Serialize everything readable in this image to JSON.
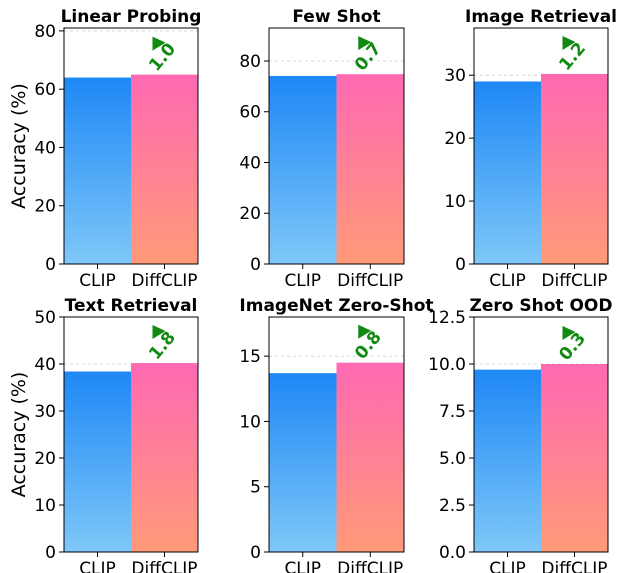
{
  "chart_data": [
    {
      "type": "bar",
      "title": "Linear Probing",
      "ylabel": "Accuracy (%)",
      "categories": [
        "CLIP",
        "DiffCLIP"
      ],
      "values": [
        64.0,
        65.0
      ],
      "ylim": [
        0,
        81
      ],
      "yticks": [
        0,
        20,
        40,
        60,
        80
      ],
      "ytick_labels": [
        "0",
        "20",
        "40",
        "60",
        "80"
      ],
      "delta": "1.0"
    },
    {
      "type": "bar",
      "title": "Few Shot",
      "ylabel": "",
      "categories": [
        "CLIP",
        "DiffCLIP"
      ],
      "values": [
        74.1,
        74.8
      ],
      "ylim": [
        0,
        93
      ],
      "yticks": [
        0,
        20,
        40,
        60,
        80
      ],
      "ytick_labels": [
        "0",
        "20",
        "40",
        "60",
        "80"
      ],
      "delta": "0.7"
    },
    {
      "type": "bar",
      "title": "Image Retrieval",
      "ylabel": "",
      "categories": [
        "CLIP",
        "DiffCLIP"
      ],
      "values": [
        29.0,
        30.2
      ],
      "ylim": [
        0,
        37.5
      ],
      "yticks": [
        0,
        10,
        20,
        30
      ],
      "ytick_labels": [
        "0",
        "10",
        "20",
        "30"
      ],
      "delta": "1.2"
    },
    {
      "type": "bar",
      "title": "Text Retrieval",
      "ylabel": "Accuracy (%)",
      "categories": [
        "CLIP",
        "DiffCLIP"
      ],
      "values": [
        38.4,
        40.2
      ],
      "ylim": [
        0,
        50
      ],
      "yticks": [
        0,
        10,
        20,
        30,
        40,
        50
      ],
      "ytick_labels": [
        "0",
        "10",
        "20",
        "30",
        "40",
        "50"
      ],
      "delta": "1.8"
    },
    {
      "type": "bar",
      "title": "ImageNet Zero-Shot",
      "ylabel": "",
      "categories": [
        "CLIP",
        "DiffCLIP"
      ],
      "values": [
        13.7,
        14.5
      ],
      "ylim": [
        0,
        18
      ],
      "yticks": [
        0,
        5,
        10,
        15
      ],
      "ytick_labels": [
        "0",
        "5",
        "10",
        "15"
      ],
      "delta": "0.8"
    },
    {
      "type": "bar",
      "title": "Zero Shot OOD",
      "ylabel": "",
      "categories": [
        "CLIP",
        "DiffCLIP"
      ],
      "values": [
        9.7,
        10.0
      ],
      "ylim": [
        0,
        12.5
      ],
      "yticks": [
        0,
        2.5,
        5,
        7.5,
        10,
        12.5
      ],
      "ytick_labels": [
        "0.0",
        "2.5",
        "5.0",
        "7.5",
        "10.0",
        "12.5"
      ],
      "delta": "0.3"
    }
  ],
  "colors": {
    "clip_top": "#1e88f5",
    "clip_bottom": "#7ec7f8",
    "diffclip_top": "#ff69b2",
    "diffclip_bottom": "#ff9a78",
    "delta": "#118a11",
    "grid": "#cfcfcf"
  }
}
